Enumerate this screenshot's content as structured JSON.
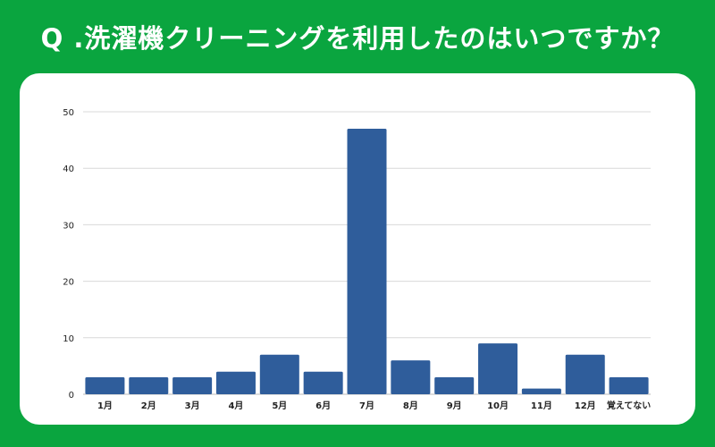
{
  "title": "Q .洗濯機クリーニングを利用したのはいつですか？",
  "colors": {
    "background": "#0aa53f",
    "card": "#ffffff",
    "bar": "#2f5d9b",
    "grid": "#d9d9d9",
    "text": "#222222"
  },
  "chart_data": {
    "type": "bar",
    "categories": [
      "1月",
      "2月",
      "3月",
      "4月",
      "5月",
      "6月",
      "7月",
      "8月",
      "9月",
      "10月",
      "11月",
      "12月",
      "覚えてない"
    ],
    "values": [
      3,
      3,
      3,
      4,
      7,
      4,
      47,
      6,
      3,
      9,
      1,
      7,
      3
    ],
    "title": "",
    "xlabel": "",
    "ylabel": "",
    "ylim": [
      0,
      50
    ],
    "yticks": [
      0,
      10,
      20,
      30,
      40,
      50
    ],
    "grid": true,
    "legend": "none"
  }
}
